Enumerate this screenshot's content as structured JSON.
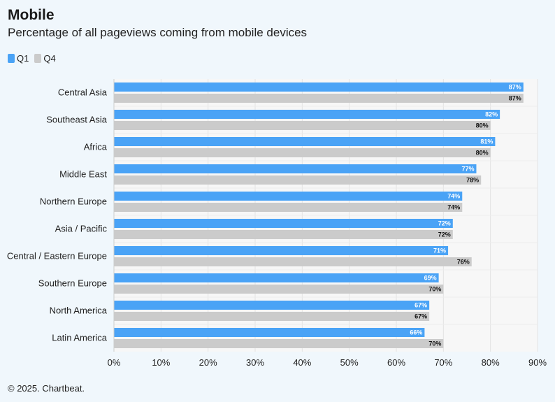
{
  "header": {
    "title": "Mobile",
    "subtitle": "Percentage of all pageviews coming from mobile devices"
  },
  "footer": {
    "credit": "© 2025. Chartbeat."
  },
  "colors": {
    "q1": "#4aa3f6",
    "q4": "#cbcbcb",
    "background": "#f0f7fc",
    "plot": "#f7f7f7"
  },
  "chart_data": {
    "type": "bar",
    "orientation": "horizontal",
    "categories": [
      "Central Asia",
      "Southeast Asia",
      "Africa",
      "Middle East",
      "Northern Europe",
      "Asia / Pacific",
      "Central / Eastern Europe",
      "Southern Europe",
      "North America",
      "Latin America"
    ],
    "series": [
      {
        "name": "Q1",
        "values": [
          87,
          82,
          81,
          77,
          74,
          72,
          71,
          69,
          67,
          66
        ]
      },
      {
        "name": "Q4",
        "values": [
          87,
          80,
          80,
          78,
          74,
          72,
          76,
          70,
          67,
          70
        ]
      }
    ],
    "xlim": [
      0,
      90
    ],
    "xticks": [
      "0%",
      "10%",
      "20%",
      "30%",
      "40%",
      "50%",
      "60%",
      "70%",
      "80%",
      "90%"
    ],
    "value_suffix": "%",
    "legend": "top-left",
    "grid": true
  }
}
